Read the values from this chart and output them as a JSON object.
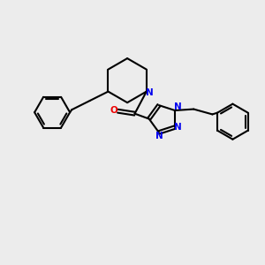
{
  "background_color": "#ececec",
  "bond_color": "#000000",
  "bond_width": 1.5,
  "atom_colors": {
    "N": "#0000ee",
    "O": "#ee0000",
    "C": "#000000"
  },
  "font_size_atom": 7.0
}
